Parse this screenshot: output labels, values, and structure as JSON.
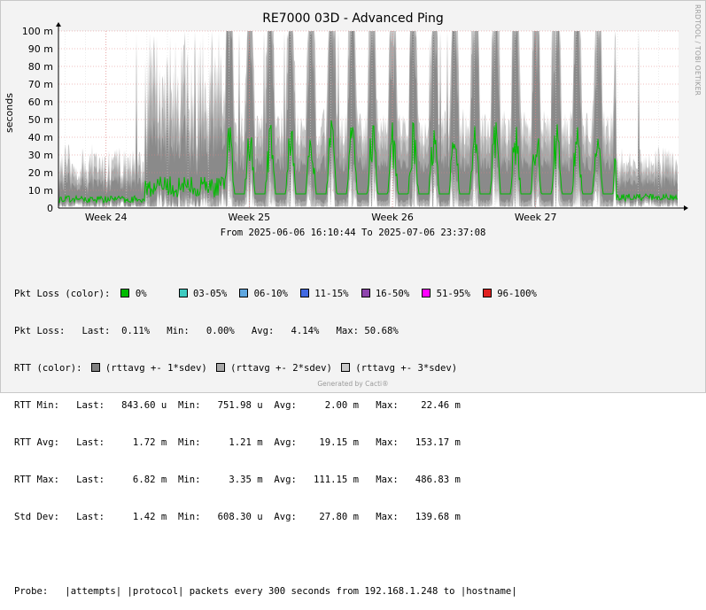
{
  "chart_data": {
    "type": "area",
    "title": "RE7000 03D - Advanced Ping",
    "side_label": "RRDTOOL / TOBI OETIKER",
    "ylabel": "seconds",
    "yticks": [
      "0",
      "10 m",
      "20 m",
      "30 m",
      "40 m",
      "50 m",
      "60 m",
      "70 m",
      "80 m",
      "90 m",
      "100 m"
    ],
    "ylim": [
      0,
      0.1
    ],
    "xlim": [
      "2025-06-06 16:10:44",
      "2025-07-06 23:37:08"
    ],
    "xticks": [
      {
        "label": "Week 24",
        "date": "2025-06-09"
      },
      {
        "label": "Week 25",
        "date": "2025-06-16"
      },
      {
        "label": "Week 26",
        "date": "2025-06-23"
      },
      {
        "label": "Week 27",
        "date": "2025-06-30"
      }
    ],
    "grid": true,
    "colors": {
      "loss_0": "#00BB00",
      "sdev1": "#8a8a8a",
      "sdev2": "#a9a9a9",
      "sdev3": "#c9c9c9",
      "avg_line": "#00BB00",
      "spike": "#3ECBC0"
    },
    "series": [
      {
        "name": "rttavg +- 1*sdev",
        "color": "#8a8a8a"
      },
      {
        "name": "rttavg +- 2*sdev",
        "color": "#a9a9a9"
      },
      {
        "name": "rttavg +- 3*sdev",
        "color": "#c9c9c9"
      }
    ],
    "stats": {
      "pkt_loss": {
        "last": "0.11%",
        "min": "0.00%",
        "avg": "4.14%",
        "max": "50.68%"
      },
      "rtt_min": {
        "last": "843.60 u",
        "min": "751.98 u",
        "avg": "2.00 m",
        "max": "22.46 m"
      },
      "rtt_avg": {
        "last": "1.72 m",
        "min": "1.21 m",
        "avg": "19.15 m",
        "max": "153.17 m"
      },
      "rtt_max": {
        "last": "6.82 m",
        "min": "3.35 m",
        "avg": "111.15 m",
        "max": "486.83 m"
      },
      "std_dev": {
        "last": "1.42 m",
        "min": "608.30 u",
        "avg": "27.80 m",
        "max": "139.68 m"
      }
    }
  },
  "date_range": "From 2025-06-06 16:10:44 To 2025-07-06 23:37:08",
  "legend": {
    "pkt_loss_items": [
      {
        "label": "0%",
        "color": "#00BB00"
      },
      {
        "label": "03-05%",
        "color": "#3ECBC0"
      },
      {
        "label": "06-10%",
        "color": "#5FA7E0"
      },
      {
        "label": "11-15%",
        "color": "#4169E1"
      },
      {
        "label": "16-50%",
        "color": "#8E44AD"
      },
      {
        "label": "51-95%",
        "color": "#FF00FF"
      },
      {
        "label": "96-100%",
        "color": "#E02020"
      }
    ],
    "rtt_items": [
      {
        "label": "(rttavg +- 1*sdev)",
        "color": "#7f7f7f"
      },
      {
        "label": "(rttavg +- 2*sdev)",
        "color": "#a8a8a8"
      },
      {
        "label": "(rttavg +- 3*sdev)",
        "color": "#c8c8c8"
      }
    ],
    "lines": {
      "pkt_loss_color": "Pkt Loss (color):",
      "pkt_loss": "Pkt Loss:   Last:  0.11%   Min:   0.00%   Avg:   4.14%   Max: 50.68%",
      "rtt_color": "RTT (color):",
      "rtt_min": "RTT Min:   Last:   843.60 u  Min:   751.98 u  Avg:     2.00 m   Max:    22.46 m",
      "rtt_avg": "RTT Avg:   Last:     1.72 m  Min:     1.21 m  Avg:    19.15 m   Max:   153.17 m",
      "rtt_max": "RTT Max:   Last:     6.82 m  Min:     3.35 m  Avg:   111.15 m   Max:   486.83 m",
      "std_dev": "Std Dev:   Last:     1.42 m  Min:   608.30 u  Avg:    27.80 m   Max:   139.68 m",
      "probe": "Probe:   |attempts| |protocol| packets every 300 seconds from 192.168.1.248 to |hostname|"
    }
  },
  "footer": "Generated by Cacti®"
}
